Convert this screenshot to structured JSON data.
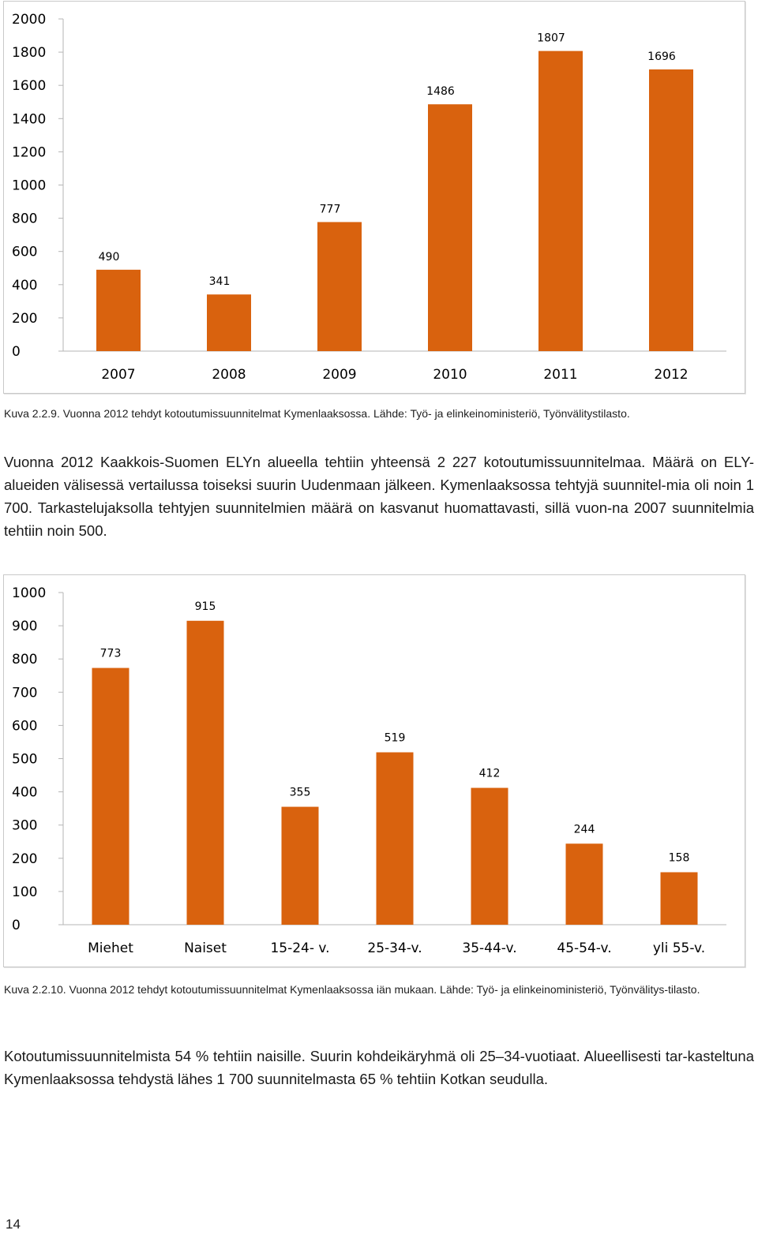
{
  "chart_data": [
    {
      "type": "bar",
      "categories": [
        "2007",
        "2008",
        "2009",
        "2010",
        "2011",
        "2012"
      ],
      "values": [
        490,
        341,
        777,
        1486,
        1807,
        1696
      ],
      "ylim": [
        0,
        2000
      ],
      "yticks": [
        "0",
        "200",
        "400",
        "600",
        "800",
        "1000",
        "1200",
        "1400",
        "1600",
        "1800",
        "2000"
      ],
      "grid": false,
      "bar_color": "#d9620e",
      "data_labels": [
        "490",
        "341",
        "777",
        "1486",
        "1807",
        "1696"
      ]
    },
    {
      "type": "bar",
      "categories": [
        "Miehet",
        "Naiset",
        "15-24- v.",
        "25-34-v.",
        "35-44-v.",
        "45-54-v.",
        "yli 55-v."
      ],
      "values": [
        773,
        915,
        355,
        519,
        412,
        244,
        158
      ],
      "ylim": [
        0,
        1000
      ],
      "yticks": [
        "0",
        "100",
        "200",
        "300",
        "400",
        "500",
        "600",
        "700",
        "800",
        "900",
        "1000"
      ],
      "grid": false,
      "bar_color": "#d9620e",
      "data_labels": [
        "773",
        "915",
        "355",
        "519",
        "412",
        "244",
        "158"
      ]
    }
  ],
  "captions": {
    "chart1": "Kuva 2.2.9. Vuonna 2012 tehdyt kotoutumissuunnitelmat Kymenlaaksossa. Lähde: Työ- ja elinkeinoministeriö, Työnvälitystilasto.",
    "chart2": "Kuva 2.2.10. Vuonna 2012 tehdyt kotoutumissuunnitelmat Kymenlaaksossa iän mukaan. Lähde: Työ- ja elinkeinoministeriö, Työnvälitys-tilasto."
  },
  "paragraphs": {
    "p1": "Vuonna 2012 Kaakkois-Suomen ELYn alueella tehtiin yhteensä 2 227 kotoutumissuunnitelmaa. Määrä on ELY-alueiden välisessä vertailussa toiseksi suurin Uudenmaan jälkeen. Kymenlaaksossa tehtyjä suunnitel-mia oli noin 1 700. Tarkastelujaksolla tehtyjen suunnitelmien määrä on kasvanut huomattavasti, sillä vuon-na 2007 suunnitelmia tehtiin noin 500.",
    "p2": "Kotoutumissuunnitelmista 54 % tehtiin naisille. Suurin kohdeikäryhmä oli 25–34-vuotiaat. Alueellisesti tar-kasteltuna Kymenlaaksossa tehdystä lähes 1 700 suunnitelmasta 65 % tehtiin Kotkan seudulla."
  },
  "page_number": "14"
}
